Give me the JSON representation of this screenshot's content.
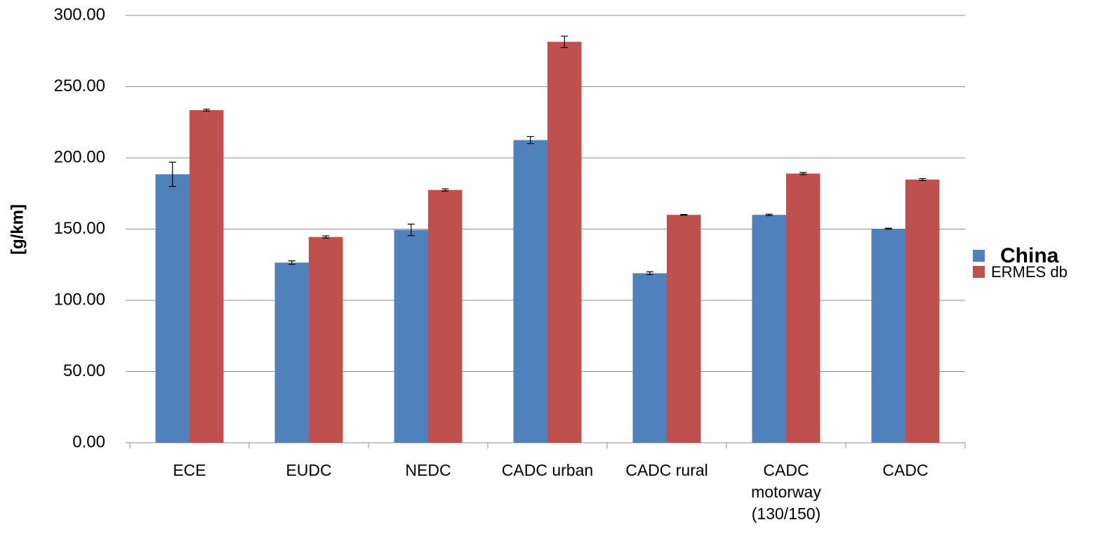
{
  "chart_data": {
    "type": "bar",
    "y_label": "[g/km]",
    "categories": [
      "ECE",
      "EUDC",
      "NEDC",
      "CADC urban",
      "CADC rural",
      "CADC motorway (130/150)",
      "CADC"
    ],
    "series": [
      {
        "name": "China",
        "color": "#4f81bd",
        "values": [
          188.5,
          126.5,
          149.5,
          212.5,
          119,
          160,
          150.3
        ],
        "errors": [
          8.5,
          1.2,
          4,
          2.5,
          1,
          0.5,
          0.3
        ]
      },
      {
        "name": "ERMES db",
        "color": "#c0504d",
        "values": [
          233.5,
          144.5,
          177.5,
          281.5,
          160,
          189,
          184.8
        ],
        "errors": [
          0.7,
          0.8,
          0.8,
          4,
          0.3,
          0.7,
          0.7
        ]
      }
    ],
    "ylim": [
      0,
      300
    ],
    "yticks": [
      {
        "value": 0,
        "label": "0.00"
      },
      {
        "value": 50,
        "label": "50.00"
      },
      {
        "value": 100,
        "label": "100.00"
      },
      {
        "value": 150,
        "label": "150.00"
      },
      {
        "value": 200,
        "label": "200.00"
      },
      {
        "value": 250,
        "label": "250.00"
      },
      {
        "value": 300,
        "label": "300.00"
      }
    ],
    "grid": true,
    "legend": "right"
  }
}
